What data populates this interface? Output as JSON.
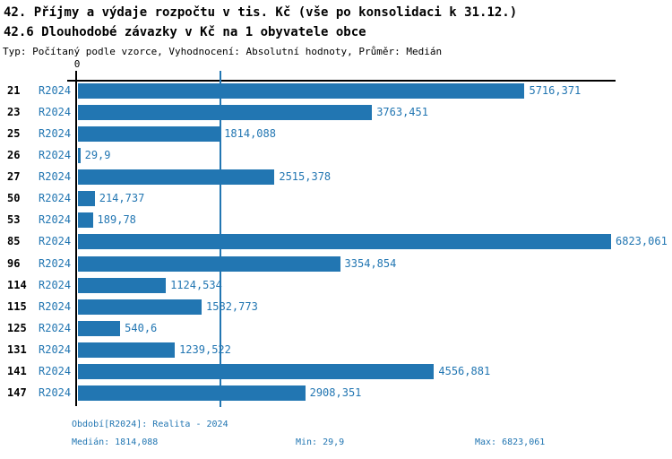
{
  "title": "42. Příjmy a výdaje rozpočtu v tis. Kč (vše po konsolidaci k 31.12.)",
  "subtitle": "42.6 Dlouhodobé závazky v Kč na 1 obyvatele obce",
  "meta": "Typ: Počítaný podle vzorce, Vyhodnocení: Absolutní hodnoty, Průměr: Medián",
  "colors": {
    "bar": "#2276b2",
    "blue_text": "#2276b2",
    "axis": "#000000",
    "background": "#ffffff"
  },
  "chart_data": {
    "type": "bar",
    "orientation": "horizontal",
    "title": "42.6 Dlouhodobé závazky v Kč na 1 obyvatele obce",
    "axis_zero_label": "0",
    "xlim": [
      0,
      6823.061
    ],
    "grid": "off",
    "series_label": "R2024",
    "categories": [
      "21",
      "23",
      "25",
      "26",
      "27",
      "50",
      "53",
      "85",
      "96",
      "114",
      "115",
      "125",
      "131",
      "141",
      "147"
    ],
    "values": [
      5716.371,
      3763.451,
      1814.088,
      29.9,
      2515.378,
      214.737,
      189.78,
      6823.061,
      3354.854,
      1124.534,
      1582.773,
      540.6,
      1239.522,
      4556.881,
      2908.351
    ],
    "value_labels": [
      "5716,371",
      "3763,451",
      "1814,088",
      "29,9",
      "2515,378",
      "214,737",
      "189,78",
      "6823,061",
      "3354,854",
      "1124,534",
      "1582,773",
      "540,6",
      "1239,522",
      "4556,881",
      "2908,351"
    ],
    "median_line_value": 1814.088
  },
  "footer": {
    "period": "Období[R2024]: Realita - 2024",
    "median": "Medián: 1814,088",
    "min": "Min: 29,9",
    "max": "Max: 6823,061"
  }
}
